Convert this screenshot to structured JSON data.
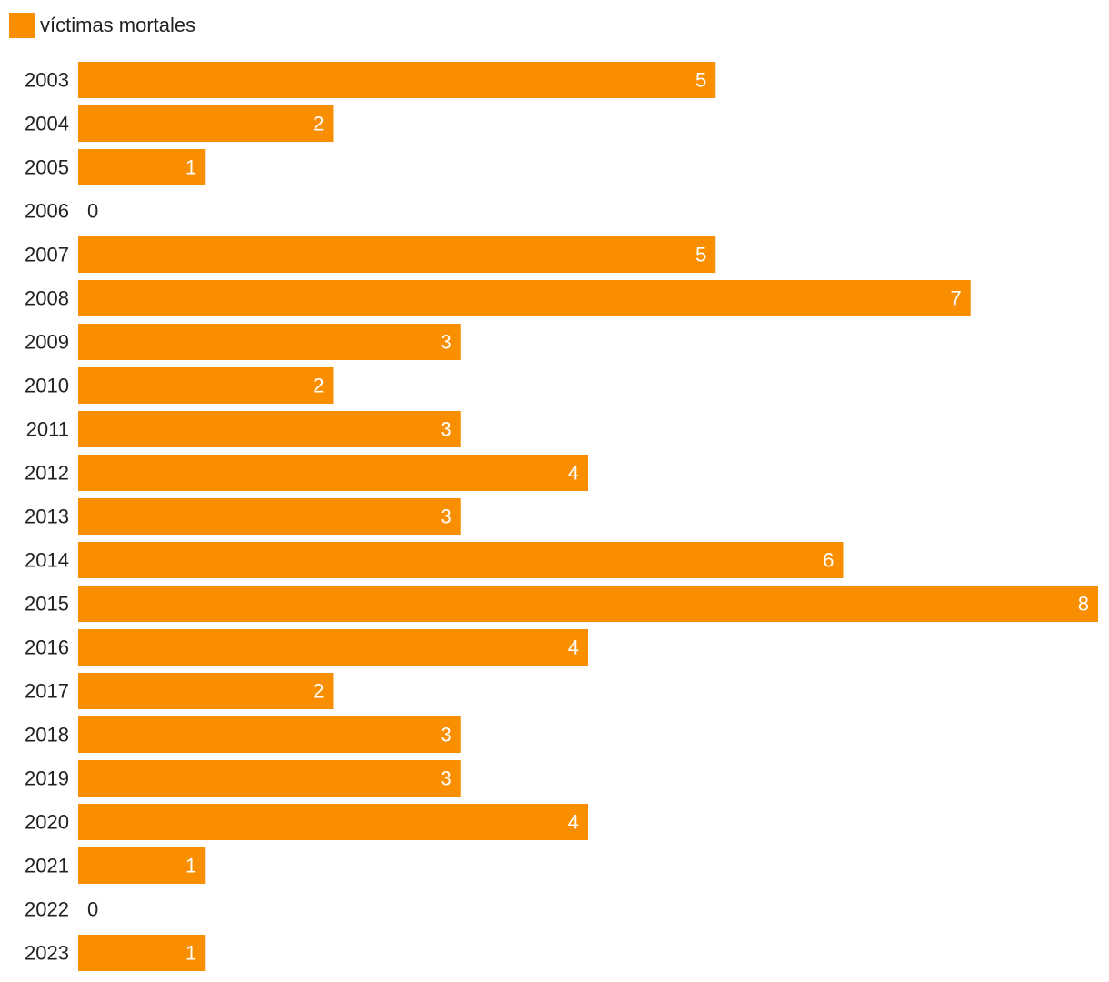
{
  "chart_data": {
    "type": "bar",
    "orientation": "horizontal",
    "legend_position": "top-left",
    "grid": false,
    "xlim": [
      0,
      8
    ],
    "series": [
      {
        "name": "víctimas mortales",
        "color": "#f98e00",
        "values": [
          5,
          2,
          1,
          0,
          5,
          7,
          3,
          2,
          3,
          4,
          3,
          6,
          8,
          4,
          2,
          3,
          3,
          4,
          1,
          0,
          1
        ]
      }
    ],
    "categories": [
      "2003",
      "2004",
      "2005",
      "2006",
      "2007",
      "2008",
      "2009",
      "2010",
      "2011",
      "2012",
      "2013",
      "2014",
      "2015",
      "2016",
      "2017",
      "2018",
      "2019",
      "2020",
      "2021",
      "2022",
      "2023"
    ]
  }
}
